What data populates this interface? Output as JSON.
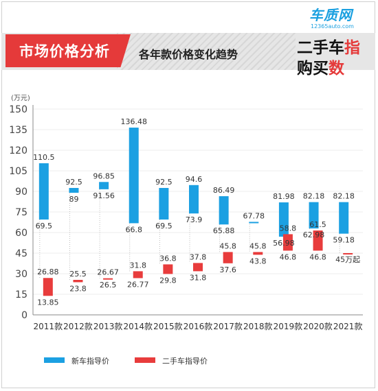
{
  "header": {
    "title": "市场价格分析",
    "subtitle": "各年款价格变化趋势",
    "logo_brand": "车质网",
    "logo_url": "12365auto.com",
    "logo_line1": "二手车",
    "logo_line1_accent": "指",
    "logo_line2": "购买",
    "logo_line2_accent": "数"
  },
  "colors": {
    "new_car": "#1ba0e2",
    "used_car": "#e83c3c",
    "title_bg": "#e53a3a"
  },
  "chart_data": {
    "type": "bar",
    "y_unit": "(万元)",
    "ylim": [
      0,
      150
    ],
    "yticks": [
      0,
      15,
      30,
      45,
      60,
      75,
      90,
      105,
      120,
      135,
      150
    ],
    "categories": [
      "2011款",
      "2012款",
      "2013款",
      "2014款",
      "2015款",
      "2016款",
      "2017款",
      "2018款",
      "2019款",
      "2020款",
      "2021款"
    ],
    "series": [
      {
        "name": "新车指导价",
        "low": [
          69.5,
          89,
          91.56,
          66.8,
          69.5,
          73.9,
          65.88,
          67.78,
          56.98,
          62.98,
          59.18
        ],
        "high": [
          110.5,
          92.5,
          96.85,
          136.48,
          92.5,
          94.6,
          86.49,
          67.78,
          81.98,
          82.18,
          82.18
        ],
        "low_labels": [
          "69.5",
          "89",
          "91.56",
          "66.8",
          "69.5",
          "73.9",
          "65.88",
          "",
          "56.98",
          "62.98",
          "59.18"
        ],
        "high_labels": [
          "110.5",
          "92.5",
          "96.85",
          "136.48",
          "92.5",
          "94.6",
          "86.49",
          "67.78",
          "81.98",
          "82.18",
          "82.18"
        ]
      },
      {
        "name": "二手车指导价",
        "low": [
          13.85,
          23.8,
          26.5,
          26.77,
          29.8,
          31.8,
          37.6,
          43.8,
          46.8,
          46.8,
          45
        ],
        "high": [
          26.88,
          25.5,
          26.67,
          31.8,
          36.8,
          37.8,
          45.8,
          45.8,
          58.8,
          61.5,
          45
        ],
        "low_labels": [
          "13.85",
          "23.8",
          "26.5",
          "26.77",
          "29.8",
          "31.8",
          "37.6",
          "43.8",
          "46.8",
          "46.8",
          "45万起"
        ],
        "high_labels": [
          "26.88",
          "25.5",
          "26.67",
          "31.8",
          "36.8",
          "37.8",
          "45.8",
          "45.8",
          "58.8",
          "61.5",
          ""
        ]
      }
    ]
  },
  "legend": {
    "new_car": "新车指导价",
    "used_car": "二手车指导价"
  }
}
